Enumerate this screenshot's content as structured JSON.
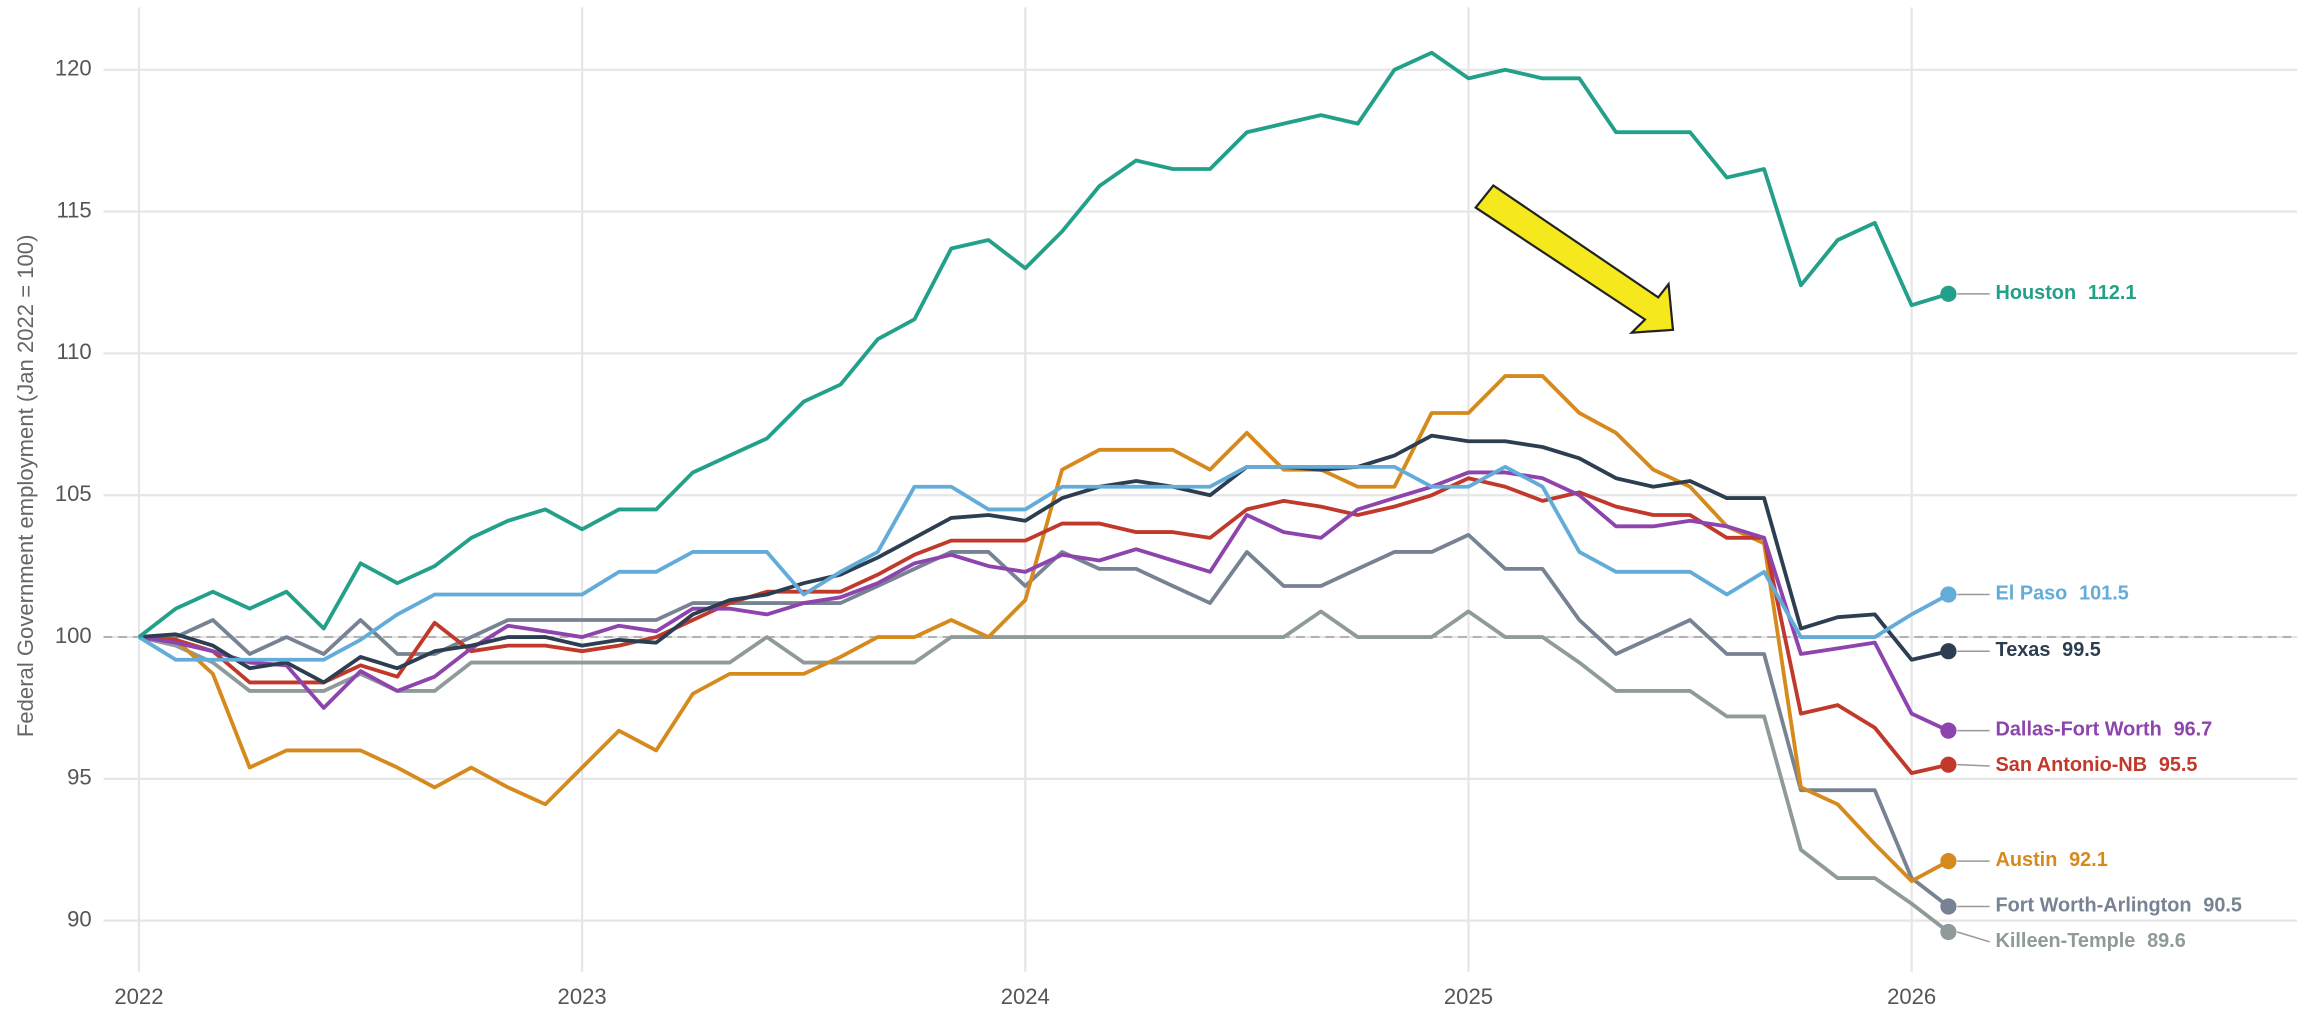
{
  "chart_data": {
    "type": "line",
    "y_label": "Federal Government employment (Jan 2022 = 100)",
    "x": [
      2022,
      2022.083,
      2022.167,
      2022.25,
      2022.333,
      2022.417,
      2022.5,
      2022.583,
      2022.667,
      2022.75,
      2022.833,
      2022.917,
      2023,
      2023.083,
      2023.167,
      2023.25,
      2023.333,
      2023.417,
      2023.5,
      2023.583,
      2023.667,
      2023.75,
      2023.833,
      2023.917,
      2024,
      2024.083,
      2024.167,
      2024.25,
      2024.333,
      2024.417,
      2024.5,
      2024.583,
      2024.667,
      2024.75,
      2024.833,
      2024.917,
      2025,
      2025.083,
      2025.167,
      2025.25,
      2025.333,
      2025.417,
      2025.5,
      2025.583,
      2025.667,
      2025.75,
      2025.833,
      2025.917,
      2026,
      2026.083
    ],
    "xlim": [
      2021.92,
      2026.87
    ],
    "xticks": [
      2022,
      2023,
      2024,
      2025,
      2026
    ],
    "ylim": [
      88.2,
      122.2
    ],
    "yticks": [
      90,
      95,
      100,
      105,
      110,
      115,
      120
    ],
    "reference_line": 100,
    "grid": true,
    "series": [
      {
        "name": "Houston",
        "color": "#23a08a",
        "values": [
          100,
          101,
          101.6,
          101,
          101.6,
          100.3,
          102.6,
          101.9,
          102.5,
          103.5,
          104.1,
          104.5,
          103.8,
          104.5,
          104.5,
          105.8,
          106.4,
          107.0,
          108.3,
          108.9,
          110.5,
          111.2,
          113.7,
          114.0,
          113.0,
          114.3,
          115.9,
          116.8,
          116.5,
          116.5,
          117.8,
          118.1,
          118.4,
          118.1,
          120.0,
          120.6,
          119.7,
          120.0,
          119.7,
          119.7,
          117.8,
          117.8,
          117.8,
          116.2,
          116.5,
          112.4,
          114.0,
          114.6,
          111.7,
          112.1
        ]
      },
      {
        "name": "El Paso",
        "color": "#63acd9",
        "values": [
          100,
          99.2,
          99.2,
          99.2,
          99.2,
          99.2,
          99.9,
          100.8,
          101.5,
          101.5,
          101.5,
          101.5,
          101.5,
          102.3,
          102.3,
          103.0,
          103.0,
          103.0,
          101.5,
          102.3,
          103.0,
          105.3,
          105.3,
          104.5,
          104.5,
          105.3,
          105.3,
          105.3,
          105.3,
          105.3,
          106.0,
          106.0,
          106.0,
          106.0,
          106.0,
          105.3,
          105.3,
          106.0,
          105.3,
          103.0,
          102.3,
          102.3,
          102.3,
          101.5,
          102.3,
          100.0,
          100.0,
          100.0,
          100.8,
          101.5
        ]
      },
      {
        "name": "Texas",
        "color": "#2c3e50",
        "values": [
          100,
          100.1,
          99.7,
          98.9,
          99.1,
          98.4,
          99.3,
          98.9,
          99.5,
          99.7,
          100,
          100,
          99.7,
          99.9,
          99.8,
          100.8,
          101.3,
          101.5,
          101.9,
          102.2,
          102.8,
          103.5,
          104.2,
          104.3,
          104.1,
          104.9,
          105.3,
          105.5,
          105.3,
          105.0,
          106.0,
          106.0,
          105.9,
          106.0,
          106.4,
          107.1,
          106.9,
          106.9,
          106.7,
          106.3,
          105.6,
          105.3,
          105.5,
          104.9,
          104.9,
          100.3,
          100.7,
          100.8,
          99.2,
          99.5
        ]
      },
      {
        "name": "Dallas-Fort Worth",
        "color": "#8e44ad",
        "values": [
          100,
          99.8,
          99.5,
          99.1,
          99.0,
          97.5,
          98.8,
          98.1,
          98.6,
          99.6,
          100.4,
          100.2,
          100.0,
          100.4,
          100.2,
          101.0,
          101.0,
          100.8,
          101.2,
          101.4,
          101.9,
          102.6,
          102.9,
          102.5,
          102.3,
          102.9,
          102.7,
          103.1,
          102.7,
          102.3,
          104.3,
          103.7,
          103.5,
          104.5,
          104.9,
          105.3,
          105.8,
          105.8,
          105.6,
          105.0,
          103.9,
          103.9,
          104.1,
          103.9,
          103.5,
          99.4,
          99.6,
          99.8,
          97.3,
          96.7
        ]
      },
      {
        "name": "San Antonio-NB",
        "color": "#c0392b",
        "values": [
          100,
          99.9,
          99.5,
          98.4,
          98.4,
          98.4,
          99.0,
          98.6,
          100.5,
          99.5,
          99.7,
          99.7,
          99.5,
          99.7,
          100.0,
          100.6,
          101.2,
          101.6,
          101.6,
          101.6,
          102.2,
          102.9,
          103.4,
          103.4,
          103.4,
          104.0,
          104.0,
          103.7,
          103.7,
          103.5,
          104.5,
          104.8,
          104.6,
          104.3,
          104.6,
          105.0,
          105.6,
          105.3,
          104.8,
          105.1,
          104.6,
          104.3,
          104.3,
          103.5,
          103.5,
          97.3,
          97.6,
          96.8,
          95.2,
          95.5
        ]
      },
      {
        "name": "Austin",
        "color": "#d68a1e",
        "values": [
          100,
          99.9,
          98.7,
          95.4,
          96.0,
          96.0,
          96.0,
          95.4,
          94.7,
          95.4,
          94.7,
          94.1,
          95.4,
          96.7,
          96.0,
          98.0,
          98.7,
          98.7,
          98.7,
          99.3,
          100.0,
          100.0,
          100.6,
          100.0,
          101.3,
          105.9,
          106.6,
          106.6,
          106.6,
          105.9,
          107.2,
          105.9,
          105.9,
          105.3,
          105.3,
          107.9,
          107.9,
          109.2,
          109.2,
          107.9,
          107.2,
          105.9,
          105.3,
          103.9,
          103.3,
          94.7,
          94.1,
          92.7,
          91.4,
          92.1
        ]
      },
      {
        "name": "Fort Worth-Arlington",
        "color": "#778393",
        "values": [
          100,
          100.0,
          100.6,
          99.4,
          100.0,
          99.4,
          100.6,
          99.4,
          99.4,
          100.0,
          100.6,
          100.6,
          100.6,
          100.6,
          100.6,
          101.2,
          101.2,
          101.2,
          101.2,
          101.2,
          101.8,
          102.4,
          103.0,
          103.0,
          101.8,
          103.0,
          102.4,
          102.4,
          101.8,
          101.2,
          103.0,
          101.8,
          101.8,
          102.4,
          103.0,
          103.0,
          103.6,
          102.4,
          102.4,
          100.6,
          99.4,
          100.0,
          100.6,
          99.4,
          99.4,
          94.6,
          94.6,
          94.6,
          91.5,
          90.5
        ]
      },
      {
        "name": "Killeen-Temple",
        "color": "#8f9a9a",
        "values": [
          100,
          99.7,
          99.1,
          98.1,
          98.1,
          98.1,
          98.7,
          98.1,
          98.1,
          99.1,
          99.1,
          99.1,
          99.1,
          99.1,
          99.1,
          99.1,
          99.1,
          100.0,
          99.1,
          99.1,
          99.1,
          99.1,
          100.0,
          100.0,
          100.0,
          100.0,
          100.0,
          100.0,
          100.0,
          100.0,
          100.0,
          100.0,
          100.9,
          100.0,
          100.0,
          100.0,
          100.9,
          100.0,
          100.0,
          99.1,
          98.1,
          98.1,
          98.1,
          97.2,
          97.2,
          92.5,
          91.5,
          91.5,
          90.6,
          89.6
        ]
      }
    ]
  }
}
